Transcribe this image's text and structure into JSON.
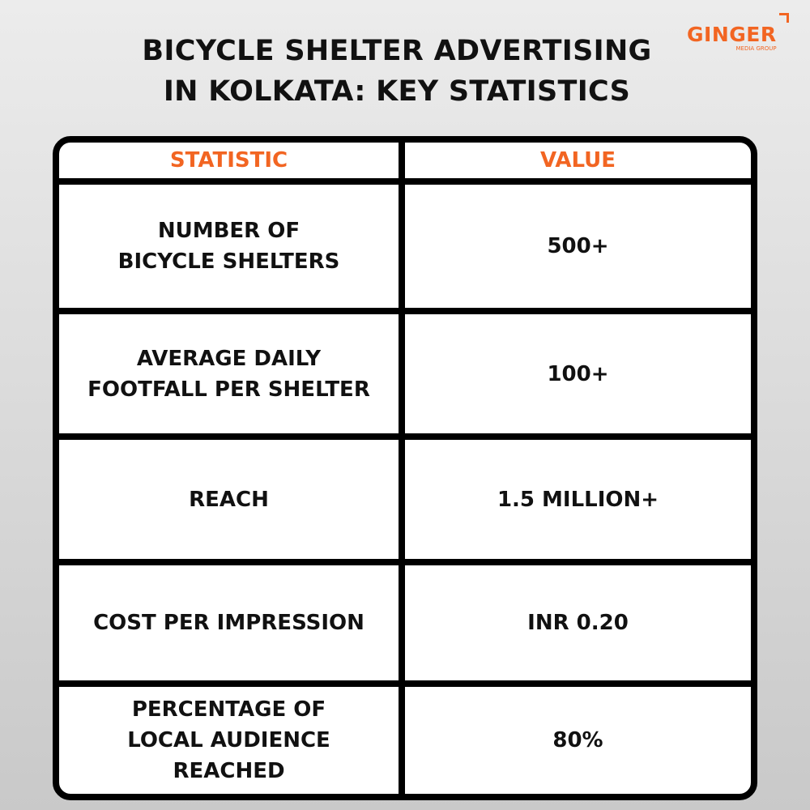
{
  "header": {
    "title_lines": [
      "BICYCLE SHELTER ADVERTISING",
      "IN KOLKATA: KEY STATISTICS"
    ],
    "logo": {
      "name": "GINGER",
      "tagline": "MEDIA GROUP"
    }
  },
  "table": {
    "columns": [
      "STATISTIC",
      "VALUE"
    ],
    "rows": [
      [
        [
          "NUMBER OF",
          "BICYCLE SHELTERS"
        ],
        [
          "500+"
        ]
      ],
      [
        [
          "AVERAGE DAILY",
          "FOOTFALL PER SHELTER"
        ],
        [
          "100+"
        ]
      ],
      [
        [
          "REACH"
        ],
        [
          "1.5 MILLION+"
        ]
      ],
      [
        [
          "COST PER IMPRESSION"
        ],
        [
          "INR 0.20"
        ]
      ],
      [
        [
          "PERCENTAGE OF",
          "LOCAL AUDIENCE",
          "REACHED"
        ],
        [
          "80%"
        ]
      ]
    ]
  }
}
